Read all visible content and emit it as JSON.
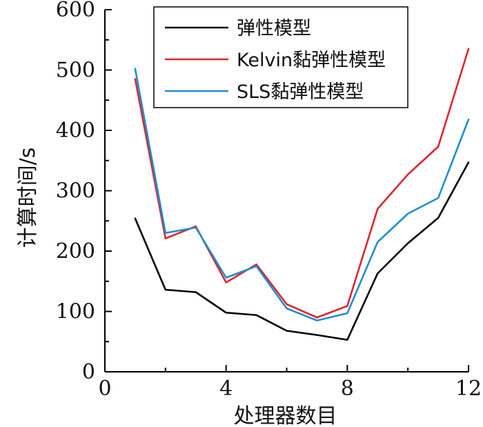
{
  "chart_data": {
    "type": "line",
    "title": "",
    "xlabel": "处理器数目",
    "ylabel": "计算时间/s",
    "xlim": [
      0,
      12
    ],
    "ylim": [
      0,
      600
    ],
    "x_ticks": [
      0,
      4,
      8,
      12
    ],
    "y_ticks": [
      0,
      100,
      200,
      300,
      400,
      500,
      600
    ],
    "grid": false,
    "legend_position": "top-right",
    "x": [
      1,
      2,
      3,
      4,
      5,
      6,
      7,
      8,
      9,
      10,
      11,
      12
    ],
    "series": [
      {
        "name": "弹性模型",
        "color": "#000000",
        "values": [
          254,
          136,
          132,
          98,
          94,
          68,
          61,
          53,
          163,
          213,
          255,
          347
        ]
      },
      {
        "name": "Kelvin黏弹性模型",
        "color": "#e0242b",
        "values": [
          485,
          221,
          241,
          148,
          178,
          112,
          90,
          109,
          270,
          327,
          373,
          535
        ]
      },
      {
        "name": "SLS黏弹性模型",
        "color": "#1b8fd0",
        "values": [
          502,
          230,
          239,
          156,
          175,
          105,
          85,
          97,
          215,
          262,
          288,
          418
        ]
      }
    ]
  }
}
